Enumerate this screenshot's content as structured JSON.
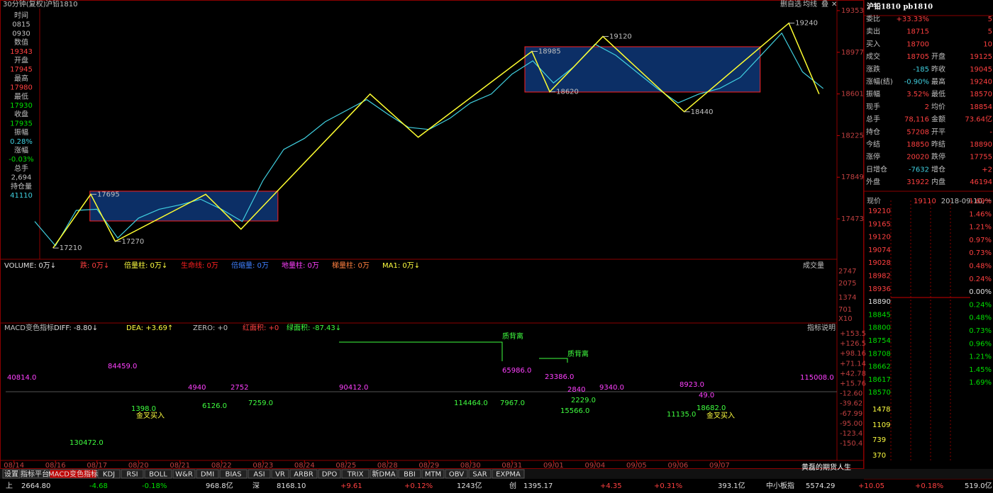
{
  "header": {
    "title": "30分钟(复权)",
    "symbol": "沪铅1810",
    "buttons": [
      "删自选",
      "均线",
      "叠",
      "✕"
    ]
  },
  "info_panel": [
    "时间",
    "0815",
    "0930",
    "数值",
    "19343",
    "开盘",
    "17945",
    "最高",
    "17980",
    "最低",
    "17930",
    "收盘",
    "17935",
    "振幅",
    "0.28%",
    "涨幅",
    "-0.03%",
    "总手",
    "2,694",
    "持仓量",
    "41110"
  ],
  "chart_data": {
    "type": "line",
    "x": [
      0.5,
      1.0,
      1.5,
      2.0,
      2.5,
      3.0,
      3.5,
      4.0,
      4.5,
      5.0,
      5.5,
      6.0,
      6.5,
      7.0,
      7.5,
      8.0,
      8.5,
      9.0,
      9.5,
      10.0,
      10.5,
      11.0,
      11.5,
      12.0,
      12.5,
      13.0,
      13.5,
      14.0,
      14.5,
      15.0,
      15.5,
      16.0,
      16.5,
      17.0,
      17.5,
      18.0,
      18.5,
      19.0,
      19.5
    ],
    "values": [
      17450,
      17230,
      17550,
      17560,
      17300,
      17480,
      17560,
      17600,
      17650,
      17560,
      17450,
      17820,
      18100,
      18200,
      18350,
      18450,
      18550,
      18420,
      18300,
      18280,
      18380,
      18520,
      18600,
      18780,
      18900,
      18700,
      18850,
      19050,
      18950,
      18800,
      18650,
      18520,
      18600,
      18650,
      18750,
      18950,
      19150,
      18800,
      18650
    ],
    "color": "#40d0e0",
    "xlim": [
      -0.2,
      19.83
    ],
    "ylim": [
      17115,
      19385
    ],
    "yticks": [
      19353,
      18977,
      18601,
      18225,
      17849,
      17473
    ],
    "xticks": [
      {
        "value": 0,
        "label": "08/14"
      },
      {
        "value": 1,
        "label": "08/16"
      },
      {
        "value": 2,
        "label": "08/17"
      },
      {
        "value": 3,
        "label": "08/20"
      },
      {
        "value": 4,
        "label": "08/21"
      },
      {
        "value": 5,
        "label": "08/22"
      },
      {
        "value": 6,
        "label": "08/23"
      },
      {
        "value": 7,
        "label": "08/24"
      },
      {
        "value": 8,
        "label": "08/25"
      },
      {
        "value": 9,
        "label": "08/28"
      },
      {
        "value": 10,
        "label": "08/29"
      },
      {
        "value": 11,
        "label": "08/30"
      },
      {
        "value": 12,
        "label": "08/31"
      },
      {
        "value": 13,
        "label": "09/01"
      },
      {
        "value": 14,
        "label": "09/04"
      },
      {
        "value": 15,
        "label": "09/05"
      },
      {
        "value": 16,
        "label": "09/06"
      },
      {
        "value": 17,
        "label": "09/07"
      }
    ],
    "zigzag": {
      "color": "#ffff30",
      "x": [
        0.94,
        1.85,
        2.44,
        4.62,
        5.47,
        8.58,
        9.74,
        12.48,
        12.91,
        14.19,
        16.15,
        18.67,
        19.4
      ],
      "values": [
        17210,
        17695,
        17270,
        17695,
        17380,
        18600,
        18210,
        18985,
        18620,
        19120,
        18440,
        19240,
        18600
      ],
      "value_labels": [
        "17210",
        "17695",
        "17270",
        null,
        null,
        null,
        null,
        "18985",
        "18620",
        "19120",
        "18440",
        "19240",
        null
      ]
    },
    "ranges": [
      {
        "x": [
          1.83,
          6.36
        ],
        "y": [
          17454,
          17723
        ]
      },
      {
        "x": [
          12.31,
          17.98
        ],
        "y": [
          18618,
          19027
        ]
      }
    ]
  },
  "volume_panel": {
    "legend": [
      "VOLUME: 0万↓",
      "跌: 0万↓",
      "倍量柱: 0万↓",
      "生命线: 0万",
      "倍缩量: 0万",
      "地量柱: 0万",
      "梯量柱: 0万",
      "MA1: 0万↓"
    ],
    "button": "成交量",
    "axis": [
      "2747",
      "2075",
      "1374",
      "701",
      "X10"
    ]
  },
  "macd_panel": {
    "legend": [
      "MACD变色指标",
      "DIFF: -8.80↓",
      "DEA: +3.69↑",
      "ZERO: +0",
      "红面积: +0",
      "绿面积: -87.43↓"
    ],
    "button": "指标说明",
    "axis": [
      "+153.5",
      "+126.5",
      "+98.16",
      "+71.14",
      "+42.78",
      "+15.76",
      "-12.60",
      "-39.62",
      "-67.99",
      "-95.00",
      "-123.4",
      "-150.4"
    ],
    "annotations": [
      "40814.0",
      "84459.0",
      "130472.0",
      "1398.0",
      "金叉买入",
      "6126.0",
      "4940",
      "2752",
      "7259.0",
      "90412.0",
      "114464.0",
      "质背离",
      "65986.0",
      "7967.0",
      "23386.0",
      "质背离",
      "2840",
      "2229.0",
      "15566.0",
      "9340.0",
      "8923.0",
      "11135.0",
      "18682.0",
      "金叉买入",
      "115008.0",
      "49.0"
    ]
  },
  "tabs": [
    "设置",
    "指标平台",
    "MACD变色指标",
    "KDJ",
    "RSI",
    "BOLL",
    "W&R",
    "DMI",
    "BIAS",
    "ASI",
    "VR",
    "ARBR",
    "DPO",
    "TRIX",
    "新DMA",
    "BBI",
    "MTM",
    "OBV",
    "SAR",
    "EXPMA"
  ],
  "status_bar": [
    "上",
    "2664.80",
    "-4.68",
    "-0.18%",
    "968.8亿",
    "深",
    "8168.10",
    "+9.61",
    "+0.12%",
    "1243亿",
    "创",
    "1395.17",
    "+4.35",
    "+0.31%",
    "393.1亿",
    "中小板指",
    "5574.29",
    "+10.05",
    "+0.18%",
    "519.0亿"
  ],
  "quote": {
    "title": "沪铅1810 pb1810",
    "rows": [
      [
        "委比",
        "+33.33%",
        "",
        "5"
      ],
      [
        "卖出",
        "18715",
        "",
        "5"
      ],
      [
        "买入",
        "18700",
        "",
        "10"
      ],
      [
        "成交",
        "18705",
        "开盘",
        "19125"
      ],
      [
        "涨跌",
        "-185",
        "昨收",
        "19045"
      ],
      [
        "涨幅(结)",
        "-0.90%",
        "最高",
        "19240"
      ],
      [
        "振幅",
        "3.52%",
        "最低",
        "18570"
      ],
      [
        "现手",
        "2",
        "均价",
        "18854"
      ],
      [
        "总手",
        "78,116",
        "金额",
        "73.64亿"
      ],
      [
        "持仓",
        "57208",
        "开平",
        "-"
      ],
      [
        "今结",
        "18850",
        "昨结",
        "18890"
      ],
      [
        "涨停",
        "20020",
        "跌停",
        "17755"
      ],
      [
        "日增仓",
        "-7632",
        "增仓",
        "+2"
      ],
      [
        "外盘",
        "31922",
        "内盘",
        "46194"
      ]
    ],
    "now_label": "现价",
    "now_value": "19110",
    "date": "2018-09-10,一"
  },
  "mini_chart": {
    "left_axis": [
      "19210",
      "19165",
      "19120",
      "19074",
      "19028",
      "18982",
      "18936",
      "18890",
      "18845",
      "18800",
      "18754",
      "18708",
      "18662",
      "18617",
      "18570"
    ],
    "right_axis": [
      "1.69%",
      "1.46%",
      "1.21%",
      "0.97%",
      "0.73%",
      "0.48%",
      "0.24%",
      "0.00%",
      "0.24%",
      "0.48%",
      "0.73%",
      "0.96%",
      "1.21%",
      "1.45%",
      "1.69%"
    ],
    "volume_axis": [
      "1478",
      "1109",
      "739",
      "370"
    ]
  },
  "watermark": "黄磊的期货人生"
}
